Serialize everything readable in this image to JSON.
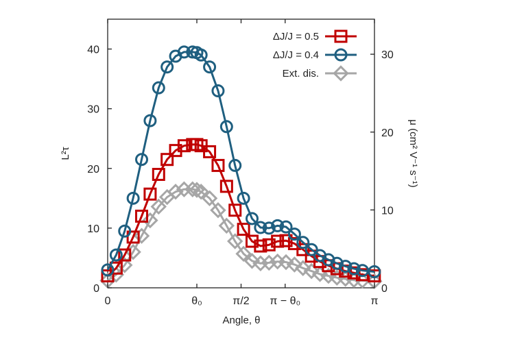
{
  "chart_data": {
    "type": "line",
    "title": "",
    "xlabel": "Angle, θ",
    "ylabel_left": "L²τ",
    "ylabel_right": "μ (cm² V⁻¹ s⁻¹)",
    "xlim": [
      0,
      3.14159
    ],
    "ylim_left": [
      0,
      45
    ],
    "ylim_right": [
      0,
      34.5
    ],
    "x_ticks": [
      {
        "value": 0,
        "label": "0"
      },
      {
        "value": 1.05,
        "label": "θ₀"
      },
      {
        "value": 1.5708,
        "label": "π/2"
      },
      {
        "value": 2.09,
        "label": "π − θ₀"
      },
      {
        "value": 3.14159,
        "label": "π"
      }
    ],
    "y_ticks_left": [
      {
        "value": 0,
        "label": "0"
      },
      {
        "value": 10,
        "label": "10"
      },
      {
        "value": 20,
        "label": "20"
      },
      {
        "value": 30,
        "label": "30"
      },
      {
        "value": 40,
        "label": "40"
      }
    ],
    "y_ticks_right": [
      {
        "value": 0,
        "label": "0"
      },
      {
        "value": 10,
        "label": "10"
      },
      {
        "value": 20,
        "label": "20"
      },
      {
        "value": 30,
        "label": "30"
      }
    ],
    "legend_position": "top-right",
    "series": [
      {
        "name": "ΔJ/J = 0.5",
        "color": "#c00000",
        "marker": "square",
        "x": [
          0.0,
          0.1,
          0.2,
          0.3,
          0.4,
          0.5,
          0.6,
          0.7,
          0.8,
          0.9,
          1.0,
          1.05,
          1.1,
          1.2,
          1.3,
          1.4,
          1.5,
          1.6,
          1.7,
          1.8,
          1.9,
          2.0,
          2.1,
          2.2,
          2.3,
          2.4,
          2.5,
          2.6,
          2.7,
          2.8,
          2.9,
          3.0,
          3.14
        ],
        "y": [
          2.0,
          3.3,
          5.5,
          8.5,
          12.0,
          15.7,
          19.0,
          21.5,
          23.0,
          23.8,
          24.0,
          24.0,
          23.8,
          22.8,
          20.5,
          17.0,
          13.0,
          9.8,
          7.8,
          7.0,
          7.2,
          7.8,
          7.9,
          7.4,
          6.4,
          5.3,
          4.4,
          3.7,
          3.2,
          2.8,
          2.5,
          2.2,
          2.0
        ]
      },
      {
        "name": "ΔJ/J = 0.4",
        "color": "#1f5f80",
        "marker": "circle",
        "x": [
          0.0,
          0.1,
          0.2,
          0.3,
          0.4,
          0.5,
          0.6,
          0.7,
          0.8,
          0.9,
          1.0,
          1.05,
          1.1,
          1.2,
          1.3,
          1.4,
          1.5,
          1.6,
          1.7,
          1.8,
          1.9,
          2.0,
          2.1,
          2.2,
          2.3,
          2.4,
          2.5,
          2.6,
          2.7,
          2.8,
          2.9,
          3.0,
          3.14
        ],
        "y": [
          3.0,
          5.5,
          9.5,
          15.0,
          21.5,
          28.0,
          33.5,
          37.0,
          38.8,
          39.5,
          39.5,
          39.4,
          39.0,
          37.0,
          33.0,
          27.0,
          20.5,
          15.0,
          11.6,
          10.1,
          10.0,
          10.4,
          10.2,
          9.0,
          7.6,
          6.4,
          5.4,
          4.7,
          4.1,
          3.6,
          3.2,
          2.9,
          2.7
        ]
      },
      {
        "name": "Ext. dis.",
        "color": "#a6a6a6",
        "marker": "diamond",
        "x": [
          0.0,
          0.1,
          0.2,
          0.3,
          0.4,
          0.5,
          0.6,
          0.7,
          0.8,
          0.9,
          1.0,
          1.05,
          1.1,
          1.2,
          1.3,
          1.4,
          1.5,
          1.6,
          1.7,
          1.8,
          1.9,
          2.0,
          2.1,
          2.2,
          2.3,
          2.4,
          2.5,
          2.6,
          2.7,
          2.8,
          2.9,
          3.0,
          3.14
        ],
        "y": [
          1.2,
          2.2,
          3.8,
          6.0,
          8.7,
          11.3,
          13.6,
          15.2,
          16.1,
          16.5,
          16.5,
          16.4,
          16.1,
          15.0,
          13.0,
          10.4,
          7.8,
          5.7,
          4.5,
          4.1,
          4.2,
          4.4,
          4.3,
          3.9,
          3.3,
          2.8,
          2.3,
          2.0,
          1.7,
          1.5,
          1.3,
          1.2,
          1.1
        ]
      }
    ]
  }
}
